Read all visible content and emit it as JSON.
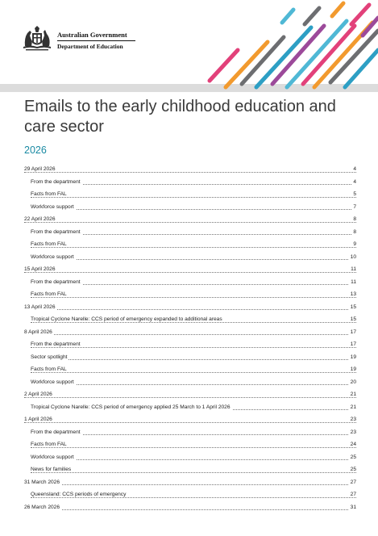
{
  "header": {
    "gov_name": "Australian Government",
    "dept_name": "Department of Education"
  },
  "page": {
    "title": "Emails to the early childhood education and care sector",
    "year": "2026"
  },
  "colors": {
    "title": "#3a3a3a",
    "year_accent": "#1a8aa3",
    "stripe_palette": [
      "#2d9fc4",
      "#e2417a",
      "#f29a2e",
      "#6d6e71",
      "#4fb8d5",
      "#9c4a9a"
    ]
  },
  "toc": [
    {
      "level": 1,
      "label": "29 April 2026",
      "page": "4"
    },
    {
      "level": 2,
      "label": "From the department",
      "page": "4"
    },
    {
      "level": 2,
      "label": "Facts from FAL",
      "page": "5"
    },
    {
      "level": 2,
      "label": "Workforce support",
      "page": "7"
    },
    {
      "level": 1,
      "label": "22 April 2026",
      "page": "8"
    },
    {
      "level": 2,
      "label": "From the department",
      "page": "8"
    },
    {
      "level": 2,
      "label": "Facts from FAL",
      "page": "9"
    },
    {
      "level": 2,
      "label": "Workforce support",
      "page": "10"
    },
    {
      "level": 1,
      "label": "15 April 2026",
      "page": "11"
    },
    {
      "level": 2,
      "label": "From the department",
      "page": "11"
    },
    {
      "level": 2,
      "label": "Facts from FAL",
      "page": "13"
    },
    {
      "level": 1,
      "label": "13 April 2026",
      "page": "15"
    },
    {
      "level": 2,
      "label": "Tropical Cyclone Narelle: CCS period of emergency expanded to additional areas",
      "page": "15"
    },
    {
      "level": 1,
      "label": "8 April 2026",
      "page": "17"
    },
    {
      "level": 2,
      "label": "From the department",
      "page": "17"
    },
    {
      "level": 2,
      "label": "Sector spotlight",
      "page": "19"
    },
    {
      "level": 2,
      "label": "Facts from FAL",
      "page": "19"
    },
    {
      "level": 2,
      "label": "Workforce support",
      "page": "20"
    },
    {
      "level": 1,
      "label": "2 April 2026",
      "page": "21"
    },
    {
      "level": 2,
      "label": "Tropical Cyclone Narelle: CCS period of emergency applied 25 March to 1 April 2026",
      "page": "21"
    },
    {
      "level": 1,
      "label": "1 April 2026",
      "page": "23"
    },
    {
      "level": 2,
      "label": "From the department",
      "page": "23"
    },
    {
      "level": 2,
      "label": "Facts from FAL",
      "page": "24"
    },
    {
      "level": 2,
      "label": "Workforce support",
      "page": "25"
    },
    {
      "level": 2,
      "label": "News for families",
      "page": "25"
    },
    {
      "level": 1,
      "label": "31 March 2026",
      "page": "27"
    },
    {
      "level": 2,
      "label": "Queensland: CCS periods of emergency",
      "page": "27"
    },
    {
      "level": 1,
      "label": "26 March 2026",
      "page": "31"
    }
  ]
}
